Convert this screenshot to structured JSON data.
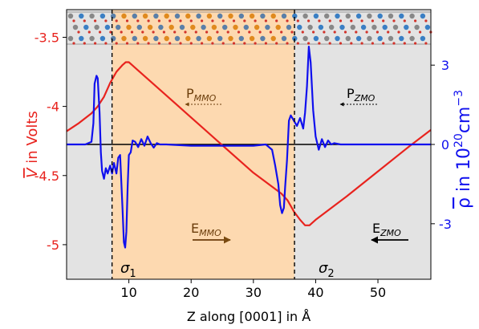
{
  "chart_data": {
    "type": "line",
    "xlabel": "Z along [0001] in Å",
    "ylabel_left": {
      "main": "V",
      "rest": " in Volts"
    },
    "ylabel_right": {
      "main": "ρ",
      "rest": " in 10",
      "sup1": "20",
      "mid": "cm",
      "sup2": "−3"
    },
    "x_ticks": [
      "10",
      "20",
      "30",
      "40",
      "50"
    ],
    "y_left_ticks": [
      "-3.5",
      "-4",
      "-4.5",
      "-5"
    ],
    "y_right_ticks": [
      "3",
      "0",
      "-3"
    ],
    "xlim": [
      0,
      58.5
    ],
    "ylim_left": [
      -5.25,
      -3.3
    ],
    "ylim_right": [
      -5.1,
      5.1
    ],
    "regions": [
      {
        "label": "ZMO",
        "x": [
          0,
          7.3
        ],
        "color": "#e3e3e3"
      },
      {
        "label": "MMO",
        "x": [
          7.3,
          36.6
        ],
        "color": "#fdd9b0"
      },
      {
        "label": "ZMO",
        "x": [
          36.6,
          58.5
        ],
        "color": "#e3e3e3"
      }
    ],
    "interfaces": [
      7.3,
      36.6
    ],
    "colors": {
      "potential": "#e8231e",
      "density": "#1010ee",
      "zero_line": "#000000",
      "left_axis": "#e8231e",
      "right_axis": "#1010ee"
    },
    "potential_series": {
      "name": "V",
      "x": [
        0,
        2,
        4,
        5,
        6,
        7,
        8,
        9,
        9.5,
        10,
        10.5,
        11,
        13,
        15,
        20,
        25,
        30,
        33,
        34.5,
        35.5,
        36.5,
        37.5,
        38.3,
        39,
        40,
        45,
        50,
        55,
        58.5
      ],
      "y": [
        -4.18,
        -4.12,
        -4.05,
        -4.0,
        -3.93,
        -3.83,
        -3.75,
        -3.7,
        -3.68,
        -3.68,
        -3.7,
        -3.72,
        -3.8,
        -3.88,
        -4.08,
        -4.28,
        -4.48,
        -4.58,
        -4.63,
        -4.68,
        -4.76,
        -4.82,
        -4.86,
        -4.86,
        -4.82,
        -4.65,
        -4.47,
        -4.29,
        -4.17
      ]
    },
    "density_series": {
      "name": "ρ",
      "x": [
        0,
        3,
        4,
        4.3,
        4.5,
        4.8,
        5,
        5.3,
        5.5,
        5.7,
        6,
        6.3,
        6.6,
        7,
        7.3,
        7.6,
        8,
        8.3,
        8.6,
        9,
        9.2,
        9.4,
        9.6,
        9.8,
        10,
        10.3,
        10.6,
        11,
        11.5,
        12,
        12.5,
        13,
        13.5,
        14,
        14.5,
        15,
        16,
        20,
        25,
        30,
        32,
        33,
        33.5,
        34,
        34.3,
        34.6,
        34.9,
        35.1,
        35.4,
        35.7,
        36,
        36.5,
        37,
        37.5,
        38,
        38.3,
        38.6,
        38.9,
        39.2,
        39.6,
        40,
        40.5,
        41,
        41.5,
        42,
        42.5,
        43,
        44,
        58.5
      ],
      "y": [
        0,
        0,
        0.1,
        0.8,
        2.3,
        2.6,
        2.5,
        1.2,
        -0.3,
        -1.0,
        -1.3,
        -0.9,
        -1.1,
        -0.8,
        -1.1,
        -0.7,
        -1.1,
        -0.5,
        -0.4,
        -2.5,
        -3.7,
        -3.9,
        -3.3,
        -1.6,
        -0.4,
        -0.3,
        0.15,
        0.1,
        -0.1,
        0.2,
        -0.05,
        0.3,
        0.05,
        -0.12,
        0.05,
        0,
        0,
        -0.05,
        -0.05,
        -0.05,
        0,
        -0.2,
        -0.8,
        -1.5,
        -2.3,
        -2.6,
        -2.4,
        -1.6,
        -0.6,
        0.9,
        1.1,
        0.9,
        0.7,
        1.0,
        0.6,
        1.2,
        2.2,
        3.7,
        3.1,
        1.3,
        0.3,
        -0.2,
        0.2,
        -0.1,
        0.15,
        0,
        0.05,
        0,
        0
      ]
    },
    "zero_line": {
      "x": [
        0,
        58.5
      ],
      "y": [
        0,
        0
      ]
    }
  },
  "annotations": {
    "sigma1": {
      "sym": "σ",
      "sub": "1"
    },
    "sigma2": {
      "sym": "σ",
      "sub": "2"
    },
    "p_mmo": {
      "main": "P",
      "sub": "MMO"
    },
    "p_zmo": {
      "main": "P",
      "sub": "ZMO"
    },
    "e_mmo": {
      "main": "E",
      "sub": "MMO"
    },
    "e_zmo": {
      "main": "E",
      "sub": "ZMO"
    }
  }
}
